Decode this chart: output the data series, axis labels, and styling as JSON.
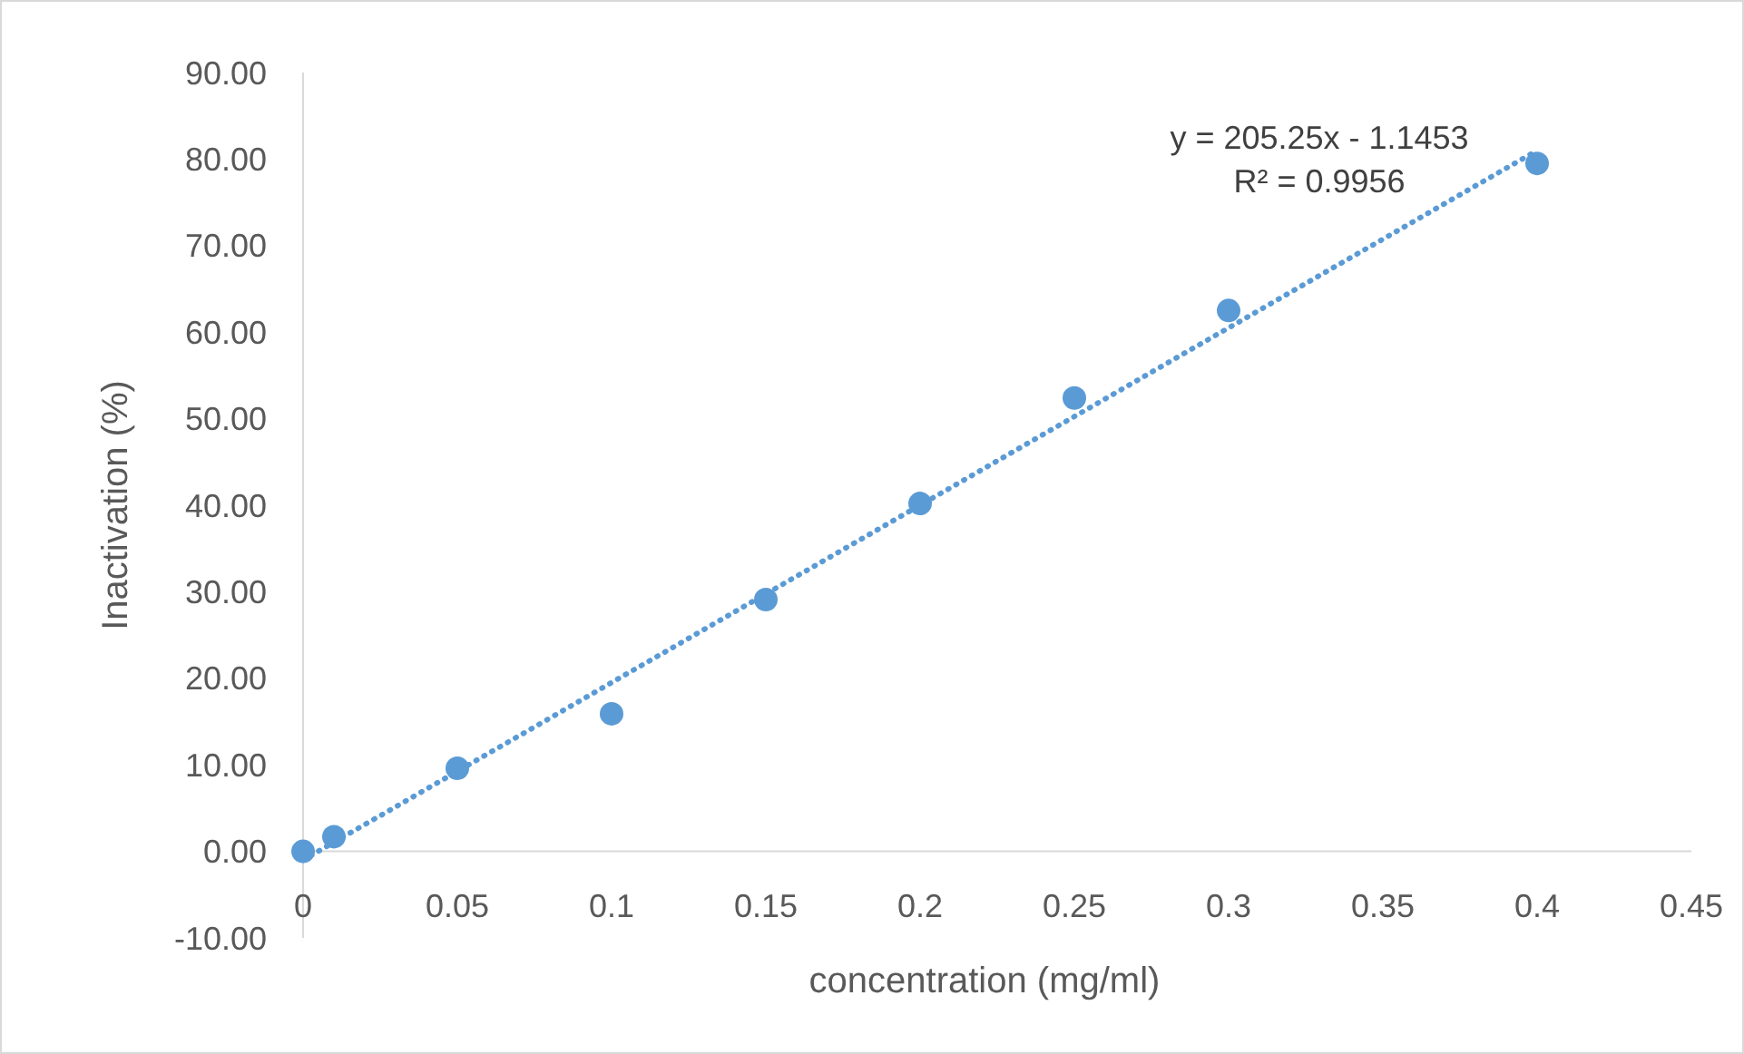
{
  "chart_data": {
    "type": "scatter",
    "xlabel": "concentration (mg/ml)",
    "ylabel": "Inactivation (%)",
    "xlim": [
      0,
      0.45
    ],
    "xticks": [
      0,
      0.05,
      0.1,
      0.15,
      0.2,
      0.25,
      0.3,
      0.35,
      0.4,
      0.45
    ],
    "ylim": [
      -10,
      90
    ],
    "yticks": [
      {
        "value": -10,
        "label": "-10.00"
      },
      {
        "value": 0,
        "label": "0.00"
      },
      {
        "value": 10,
        "label": "10.00"
      },
      {
        "value": 20,
        "label": "20.00"
      },
      {
        "value": 30,
        "label": "30.00"
      },
      {
        "value": 40,
        "label": "40.00"
      },
      {
        "value": 50,
        "label": "50.00"
      },
      {
        "value": 60,
        "label": "60.00"
      },
      {
        "value": 70,
        "label": "70.00"
      },
      {
        "value": 80,
        "label": "80.00"
      },
      {
        "value": 90,
        "label": "90.00"
      }
    ],
    "grid": false,
    "series": [
      {
        "color": "#5b9bd5",
        "marker": "circle",
        "x": [
          0,
          0.01,
          0.05,
          0.1,
          0.15,
          0.2,
          0.25,
          0.3,
          0.4
        ],
        "values": [
          0.0,
          1.7,
          9.6,
          15.9,
          29.1,
          40.2,
          52.4,
          62.5,
          79.5
        ]
      },
      {
        "type": "line",
        "color": "#5b9bd5",
        "line_style": "dotted",
        "marker": "none",
        "x": [
          0,
          0.4
        ],
        "values": [
          -1,
          81
        ]
      }
    ],
    "annotations": [
      "y = 205.25x - 1.1453",
      "R² = 0.9956"
    ]
  }
}
